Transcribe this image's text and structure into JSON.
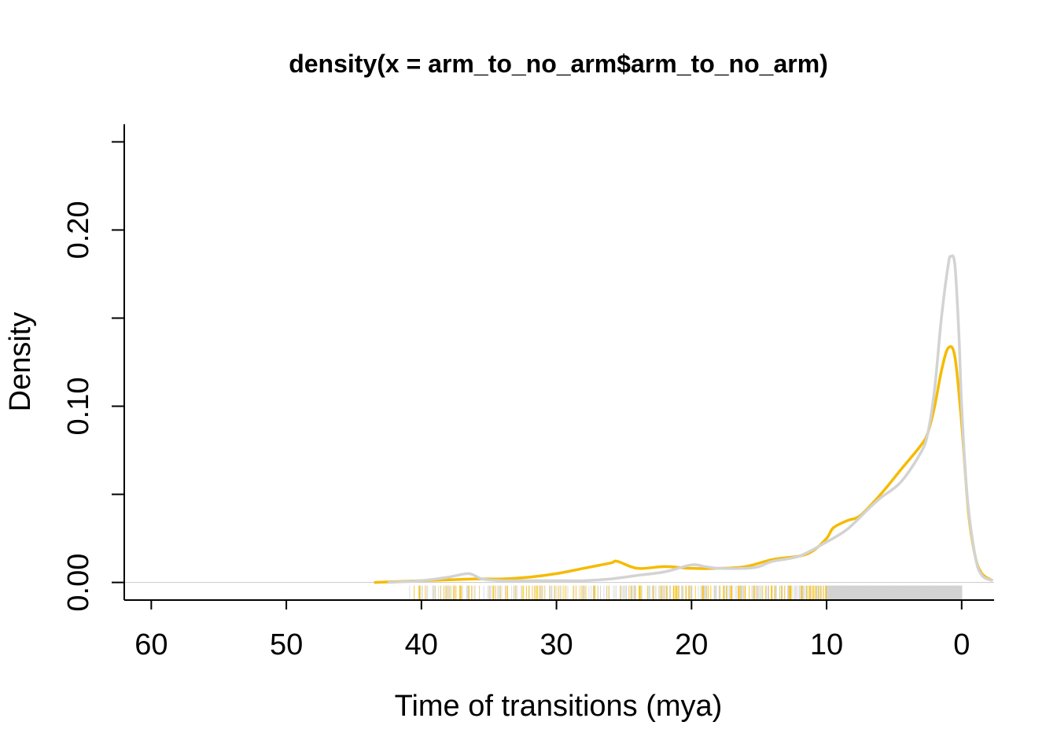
{
  "chart_data": {
    "type": "line",
    "title": "density(x = arm_to_no_arm$arm_to_no_arm)",
    "xlabel": "Time of transitions (mya)",
    "ylabel": "Density",
    "x_reversed": true,
    "xlim": [
      62,
      -2.4
    ],
    "ylim": [
      -0.01,
      0.26
    ],
    "x_ticks": [
      60,
      50,
      40,
      30,
      20,
      10,
      0
    ],
    "x_tick_labels": [
      "60",
      "50",
      "40",
      "30",
      "20",
      "10",
      "0"
    ],
    "y_ticks": [
      0.0,
      0.05,
      0.1,
      0.15,
      0.2,
      0.25
    ],
    "y_tick_labels": [
      "0.00",
      "",
      "0.10",
      "",
      "0.20",
      ""
    ],
    "zero_line": 0,
    "series": [
      {
        "color": "#F5BB00",
        "x": [
          43.5,
          40,
          38,
          36,
          34,
          32,
          30,
          28,
          26,
          25.5,
          24,
          22,
          20,
          18,
          16,
          14,
          12,
          11,
          10,
          9.5,
          8.5,
          7.5,
          6,
          4.5,
          3,
          2.5,
          2,
          1.5,
          1.0,
          0.5,
          0.0,
          -0.5,
          -1,
          -1.5,
          -2.3
        ],
        "y": [
          0.0,
          0.001,
          0.0015,
          0.002,
          0.002,
          0.003,
          0.005,
          0.008,
          0.011,
          0.012,
          0.008,
          0.009,
          0.008,
          0.008,
          0.009,
          0.013,
          0.015,
          0.018,
          0.025,
          0.031,
          0.035,
          0.038,
          0.05,
          0.064,
          0.078,
          0.085,
          0.1,
          0.12,
          0.133,
          0.128,
          0.09,
          0.04,
          0.015,
          0.005,
          0.001
        ]
      },
      {
        "color": "#D3D3D3",
        "x": [
          42.5,
          40,
          38,
          36.5,
          35.5,
          34,
          32,
          30,
          28,
          26,
          24,
          22,
          20,
          19,
          18,
          16,
          15,
          14,
          12,
          10,
          8.5,
          7,
          6,
          4.5,
          3,
          2.5,
          2,
          1.5,
          1.0,
          0.8,
          0.5,
          0.2,
          0.0,
          -0.4,
          -1,
          -1.5,
          -2.3
        ],
        "y": [
          0.0,
          0.001,
          0.003,
          0.005,
          0.002,
          0.001,
          0.001,
          0.001,
          0.001,
          0.002,
          0.004,
          0.006,
          0.01,
          0.009,
          0.008,
          0.008,
          0.009,
          0.012,
          0.015,
          0.023,
          0.03,
          0.041,
          0.048,
          0.057,
          0.074,
          0.085,
          0.11,
          0.15,
          0.18,
          0.185,
          0.18,
          0.14,
          0.1,
          0.05,
          0.015,
          0.004,
          0.001
        ]
      }
    ],
    "rug": [
      {
        "color": "#F5BB00",
        "x_start": 41,
        "x_end": 0
      },
      {
        "color": "#D3D3D3",
        "x_start": 41,
        "x_end": 0
      }
    ]
  }
}
